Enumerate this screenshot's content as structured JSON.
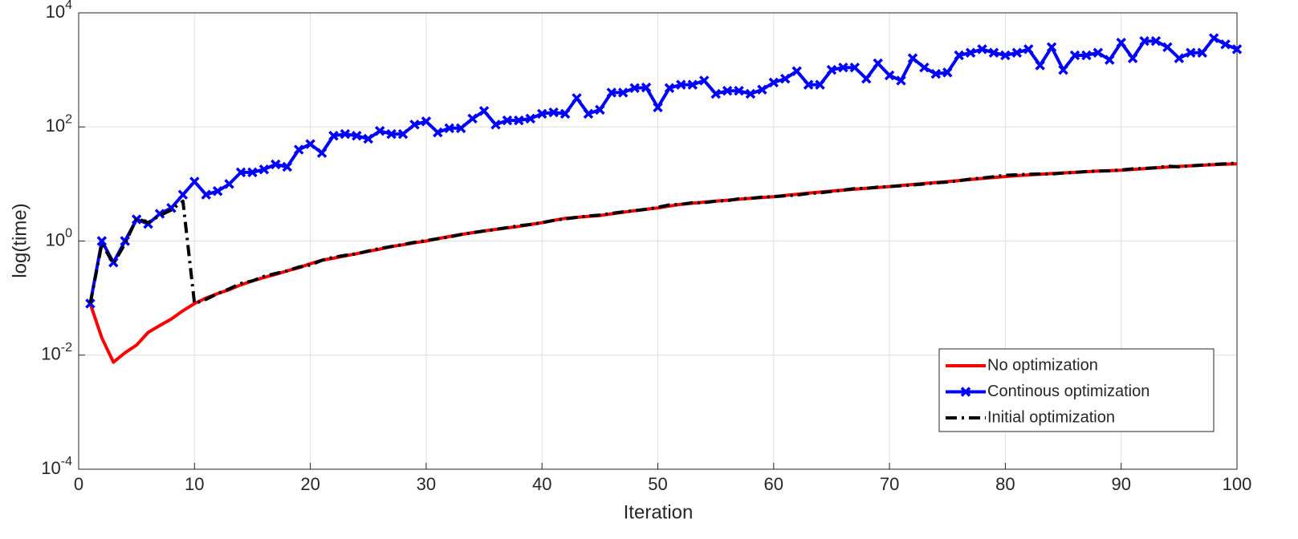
{
  "chart_data": {
    "type": "line",
    "xlabel": "Iteration",
    "ylabel": "log(time)",
    "x": [
      1,
      2,
      3,
      4,
      5,
      6,
      7,
      8,
      9,
      10,
      11,
      12,
      13,
      14,
      15,
      16,
      17,
      18,
      19,
      20,
      21,
      22,
      23,
      24,
      25,
      26,
      27,
      28,
      29,
      30,
      31,
      32,
      33,
      34,
      35,
      36,
      37,
      38,
      39,
      40,
      41,
      42,
      43,
      44,
      45,
      46,
      47,
      48,
      49,
      50,
      51,
      52,
      53,
      54,
      55,
      56,
      57,
      58,
      59,
      60,
      61,
      62,
      63,
      64,
      65,
      66,
      67,
      68,
      69,
      70,
      71,
      72,
      73,
      74,
      75,
      76,
      77,
      78,
      79,
      80,
      81,
      82,
      83,
      84,
      85,
      86,
      87,
      88,
      89,
      90,
      91,
      92,
      93,
      94,
      95,
      96,
      97,
      98,
      99,
      100
    ],
    "series": [
      {
        "name": "No optimization",
        "color": "#ff0000",
        "values": [
          0.08,
          0.02,
          0.0075,
          0.011,
          0.015,
          0.025,
          0.033,
          0.043,
          0.06,
          0.08,
          0.1,
          0.12,
          0.14,
          0.17,
          0.2,
          0.23,
          0.26,
          0.3,
          0.34,
          0.4,
          0.46,
          0.5,
          0.55,
          0.6,
          0.66,
          0.72,
          0.8,
          0.86,
          0.93,
          1.0,
          1.1,
          1.2,
          1.3,
          1.4,
          1.5,
          1.6,
          1.7,
          1.8,
          1.95,
          2.1,
          2.3,
          2.5,
          2.6,
          2.7,
          2.8,
          3.0,
          3.2,
          3.4,
          3.6,
          3.8,
          4.1,
          4.4,
          4.6,
          4.8,
          5.0,
          5.2,
          5.4,
          5.6,
          5.8,
          6.0,
          6.3,
          6.6,
          6.9,
          7.2,
          7.5,
          7.8,
          8.1,
          8.4,
          8.7,
          9.0,
          9.4,
          9.8,
          10.2,
          10.6,
          11.0,
          11.5,
          12.0,
          12.5,
          13.0,
          13.5,
          14.0,
          14.4,
          14.8,
          15.2,
          15.6,
          16.0,
          16.4,
          16.8,
          17.1,
          17.4,
          18,
          18.6,
          19.2,
          19.8,
          20.3,
          20.8,
          21.3,
          21.8,
          22.2,
          22.5
        ]
      },
      {
        "name": "Continous optimization",
        "color": "#0000ff",
        "marker": "x",
        "values": [
          0.08,
          1.0,
          0.42,
          1.0,
          2.4,
          2.0,
          3.0,
          3.8,
          6.5,
          11,
          6.5,
          7.5,
          10,
          16,
          16,
          18,
          22,
          20,
          40,
          50,
          35,
          70,
          75,
          70,
          62,
          85,
          75,
          75,
          110,
          125,
          80,
          95,
          95,
          140,
          190,
          110,
          130,
          130,
          140,
          170,
          180,
          170,
          320,
          170,
          200,
          400,
          400,
          480,
          490,
          220,
          480,
          550,
          550,
          650,
          380,
          430,
          430,
          380,
          450,
          600,
          700,
          950,
          550,
          550,
          1000,
          1100,
          1100,
          700,
          1300,
          800,
          650,
          1600,
          1100,
          850,
          900,
          1800,
          2000,
          2300,
          2000,
          1800,
          2000,
          2300,
          1200,
          2500,
          1000,
          1800,
          1800,
          2000,
          1500,
          3000,
          1600,
          3200,
          3200,
          2500,
          1600,
          2000,
          2000,
          3600,
          2800,
          2300
        ]
      },
      {
        "name": "Initial optimization",
        "color": "#000000",
        "dash": "dashdot",
        "values": [
          0.08,
          0.9,
          0.4,
          0.9,
          2.5,
          2.1,
          2.8,
          3.5,
          5.0,
          0.08,
          0.095,
          0.12,
          0.145,
          0.18,
          0.2,
          0.24,
          0.27,
          0.3,
          0.35,
          0.38,
          0.46,
          0.52,
          0.56,
          0.6,
          0.67,
          0.74,
          0.8,
          0.87,
          0.95,
          1.02,
          1.1,
          1.18,
          1.3,
          1.4,
          1.5,
          1.6,
          1.72,
          1.85,
          1.95,
          2.1,
          2.3,
          2.45,
          2.6,
          2.75,
          2.85,
          3.05,
          3.25,
          3.4,
          3.6,
          3.9,
          4.3,
          4.4,
          4.7,
          4.7,
          5.0,
          5.1,
          5.5,
          5.6,
          5.9,
          6.0,
          6.2,
          6.4,
          6.8,
          7.0,
          7.4,
          7.8,
          8.3,
          8.4,
          8.8,
          9.0,
          9.3,
          9.6,
          10.0,
          10.5,
          10.8,
          11.4,
          12.2,
          12.7,
          13.4,
          14.2,
          14.5,
          14.8,
          15.0,
          15.0,
          15.5,
          16.0,
          16.5,
          16.8,
          17.0,
          17.6,
          18.4,
          18.8,
          19.3,
          20.5,
          20.0,
          20.8,
          21.5,
          22.0,
          22.6,
          23.2
        ]
      }
    ],
    "xlim": [
      0,
      100
    ],
    "xticks": [
      0,
      10,
      20,
      30,
      40,
      50,
      60,
      70,
      80,
      90,
      100
    ],
    "ylim": [
      0.0001,
      10000
    ],
    "yscale": "log",
    "yticks": [
      {
        "value": 0.0001,
        "label": "10^-4"
      },
      {
        "value": 0.01,
        "label": "10^-2"
      },
      {
        "value": 1,
        "label": "10^0"
      },
      {
        "value": 100,
        "label": "10^2"
      },
      {
        "value": 10000,
        "label": "10^4"
      }
    ],
    "grid": true,
    "legend": "lower right"
  }
}
